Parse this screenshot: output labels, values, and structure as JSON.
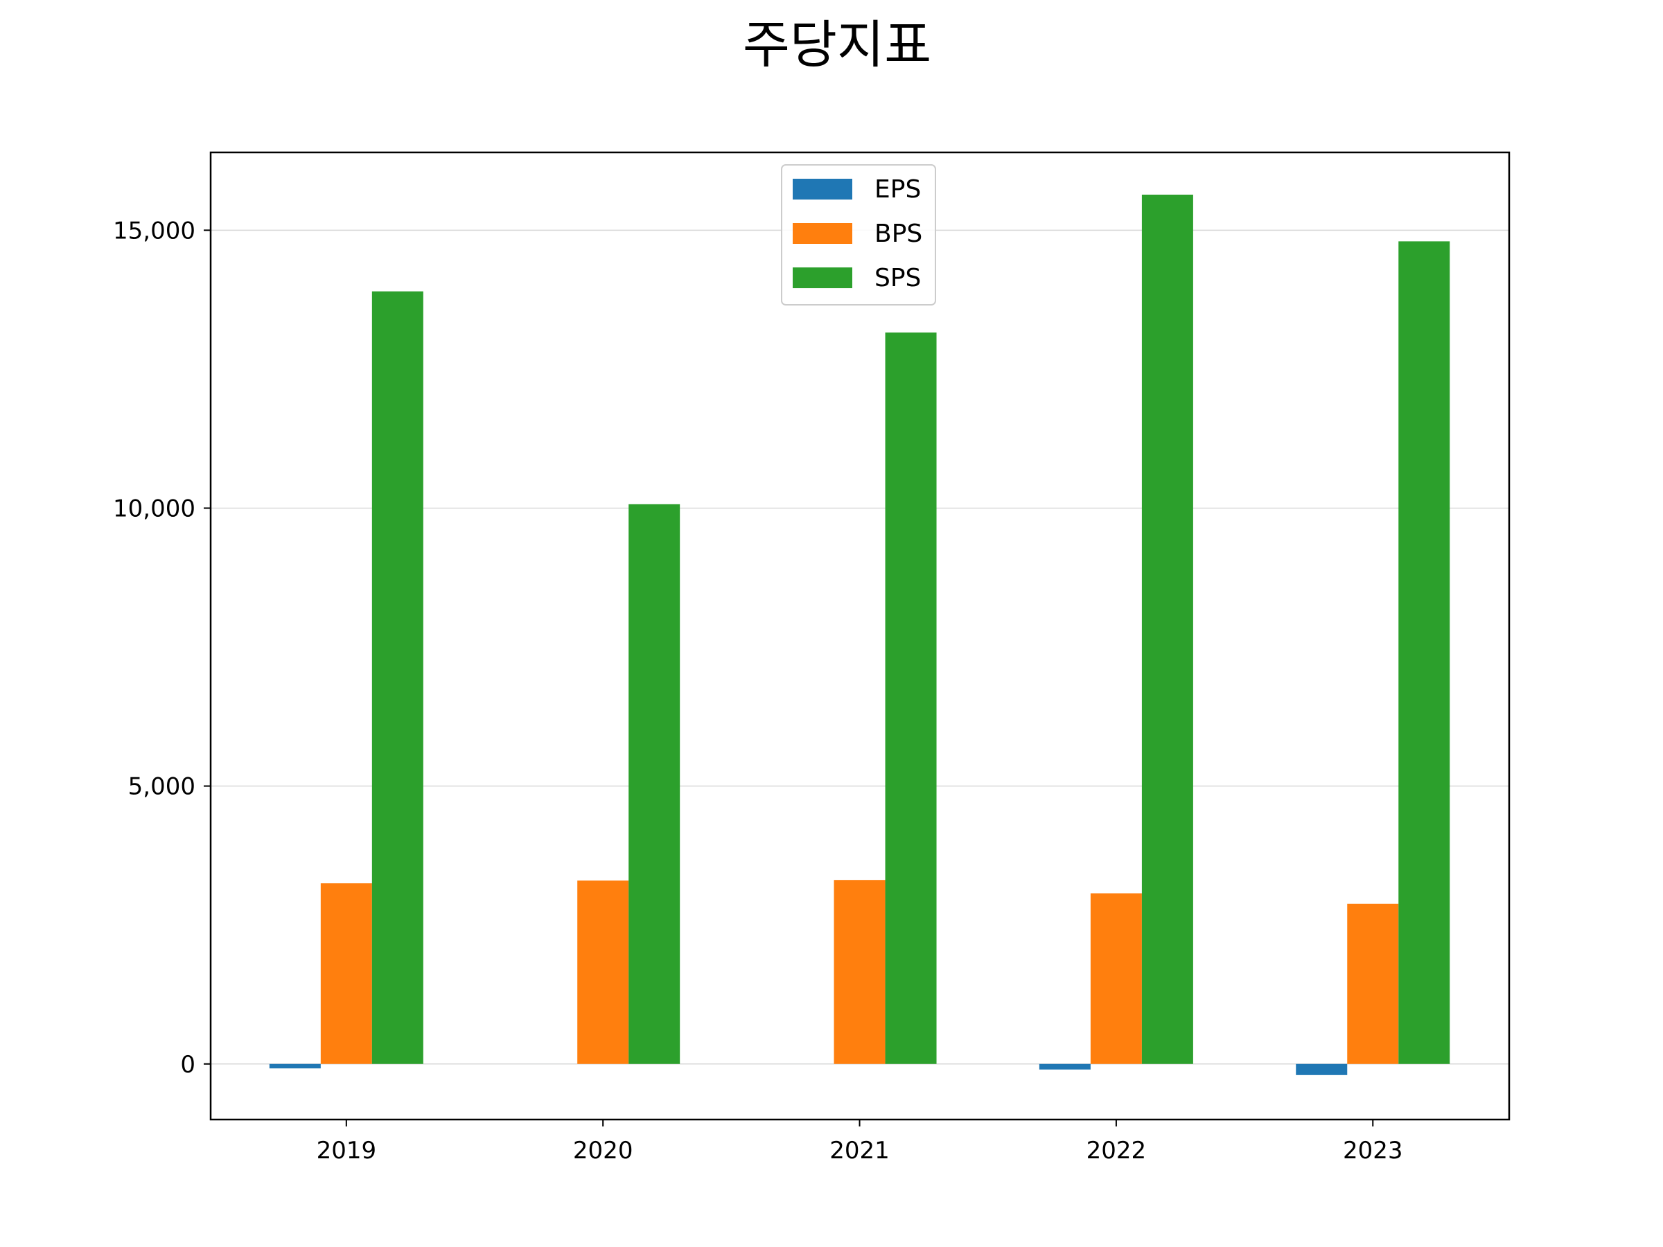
{
  "chart_data": {
    "type": "bar",
    "title": "주당지표",
    "xlabel": "",
    "ylabel": "",
    "categories": [
      "2019",
      "2020",
      "2021",
      "2022",
      "2023"
    ],
    "series": [
      {
        "name": "EPS",
        "color": "#1f77b4",
        "values": [
          -80,
          0,
          0,
          -100,
          -200
        ]
      },
      {
        "name": "BPS",
        "color": "#ff7f0e",
        "values": [
          3250,
          3300,
          3310,
          3070,
          2880
        ]
      },
      {
        "name": "SPS",
        "color": "#2ca02c",
        "values": [
          13900,
          10070,
          13160,
          15640,
          14800
        ]
      }
    ],
    "ylim": [
      -1000,
      16400
    ],
    "yticks": [
      0,
      5000,
      10000,
      15000
    ],
    "ytick_labels": [
      "0",
      "5,000",
      "10,000",
      "15,000"
    ],
    "grid": "y",
    "legend_position": "top-center"
  }
}
